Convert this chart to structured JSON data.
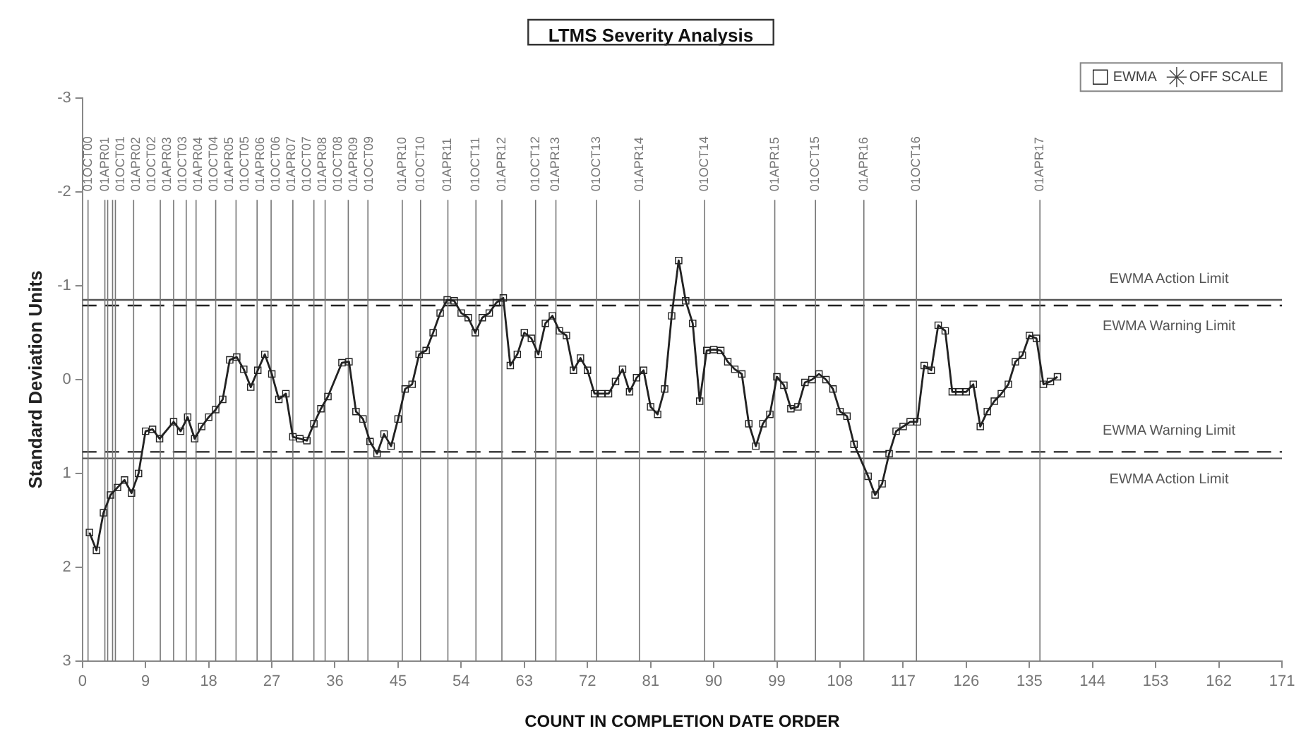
{
  "chart_data": {
    "type": "line",
    "title": "LTMS Severity Analysis",
    "xlabel": "COUNT IN COMPLETION DATE ORDER",
    "ylabel": "Standard Deviation Units",
    "xlim": [
      0,
      171
    ],
    "xticks": [
      0,
      9,
      18,
      27,
      36,
      45,
      54,
      63,
      72,
      81,
      90,
      99,
      108,
      117,
      126,
      135,
      144,
      153,
      162,
      171
    ],
    "ylim": [
      3,
      -3
    ],
    "yticks": [
      -3,
      -2,
      -1,
      0,
      1,
      2,
      3
    ],
    "grid": false,
    "legend": "top right",
    "marker": "square",
    "line_style": "solid",
    "series": [
      {
        "name": "EWMA",
        "color": "#222222",
        "x": [
          1,
          2,
          3,
          4,
          5,
          6,
          7,
          8,
          9,
          10,
          11,
          13,
          14,
          15,
          16,
          17,
          18,
          19,
          20,
          21,
          22,
          23,
          24,
          25,
          26,
          27,
          28,
          29,
          30,
          31,
          32,
          33,
          34,
          35,
          37,
          38,
          39,
          40,
          41,
          42,
          43,
          44,
          45,
          46,
          47,
          48,
          49,
          50,
          51,
          52,
          53,
          54,
          55,
          56,
          57,
          58,
          59,
          60,
          61,
          62,
          63,
          64,
          65,
          66,
          67,
          68,
          69,
          70,
          71,
          72,
          73,
          74,
          75,
          76,
          77,
          78,
          79,
          80,
          81,
          82,
          83,
          84,
          85,
          86,
          87,
          88,
          89,
          90,
          91,
          92,
          93,
          94,
          95,
          96,
          97,
          98,
          99,
          100,
          101,
          102,
          103,
          104,
          105,
          106,
          107,
          108,
          109,
          110,
          112,
          113,
          114,
          115,
          116,
          117,
          118,
          119,
          120,
          121,
          122,
          123,
          124,
          125,
          126,
          127,
          128,
          129,
          130,
          131,
          132,
          133,
          134,
          135,
          136,
          137,
          138,
          139
        ],
        "values": [
          1.63,
          1.82,
          1.42,
          1.23,
          1.15,
          1.07,
          1.21,
          1.0,
          0.55,
          0.53,
          0.63,
          0.45,
          0.55,
          0.4,
          0.63,
          0.5,
          0.4,
          0.32,
          0.21,
          -0.21,
          -0.24,
          -0.11,
          0.08,
          -0.1,
          -0.27,
          -0.06,
          0.21,
          0.15,
          0.61,
          0.63,
          0.65,
          0.47,
          0.31,
          0.18,
          -0.18,
          -0.19,
          0.34,
          0.42,
          0.66,
          0.79,
          0.58,
          0.71,
          0.42,
          0.1,
          0.05,
          -0.27,
          -0.31,
          -0.5,
          -0.71,
          -0.85,
          -0.84,
          -0.71,
          -0.66,
          -0.5,
          -0.66,
          -0.71,
          -0.82,
          -0.87,
          -0.15,
          -0.27,
          -0.5,
          -0.44,
          -0.27,
          -0.6,
          -0.68,
          -0.52,
          -0.47,
          -0.1,
          -0.23,
          -0.1,
          0.15,
          0.15,
          0.15,
          0.02,
          -0.11,
          0.13,
          -0.02,
          -0.1,
          0.29,
          0.37,
          0.1,
          -0.68,
          -1.27,
          -0.84,
          -0.6,
          0.23,
          -0.31,
          -0.32,
          -0.31,
          -0.19,
          -0.11,
          -0.06,
          0.47,
          0.71,
          0.47,
          0.37,
          -0.03,
          0.06,
          0.31,
          0.29,
          0.03,
          0.0,
          -0.06,
          0.0,
          0.1,
          0.34,
          0.39,
          0.69,
          1.03,
          1.23,
          1.11,
          0.79,
          0.55,
          0.5,
          0.45,
          0.45,
          -0.15,
          -0.1,
          -0.58,
          -0.52,
          0.13,
          0.13,
          0.13,
          0.05,
          0.5,
          0.34,
          0.23,
          0.15,
          0.05,
          -0.19,
          -0.26,
          -0.47,
          -0.44,
          0.05,
          0.02,
          -0.03
        ]
      },
      {
        "name": "OFF SCALE",
        "color": "#444444",
        "marker": "star"
      }
    ],
    "ref_lines": [
      {
        "axis": "y",
        "value": -0.85,
        "label": "EWMA Action Limit",
        "line_style": "solid",
        "color": "#555555"
      },
      {
        "axis": "y",
        "value": -0.79,
        "label": "EWMA Warning Limit",
        "line_style": "dashed",
        "color": "#222222"
      },
      {
        "axis": "y",
        "value": 0.77,
        "label": "EWMA Warning Limit",
        "line_style": "dashed",
        "color": "#222222"
      },
      {
        "axis": "y",
        "value": 0.84,
        "label": "EWMA Action Limit",
        "line_style": "solid",
        "color": "#555555"
      },
      {
        "axis": "x",
        "value": 0.8,
        "label": "01OCT00"
      },
      {
        "axis": "x",
        "value": 3.2,
        "label": "01APR01"
      },
      {
        "axis": "x",
        "value": 3.6,
        "label": "01OCT01"
      },
      {
        "axis": "x",
        "value": 4.3,
        "label": "01APR02"
      },
      {
        "axis": "x",
        "value": 4.7,
        "label": "01OCT02"
      },
      {
        "axis": "x",
        "value": 7.3,
        "label": "01APR03"
      },
      {
        "axis": "x",
        "value": 11.1,
        "label": "01OCT03"
      },
      {
        "axis": "x",
        "value": 13.0,
        "label": "01APR04"
      },
      {
        "axis": "x",
        "value": 14.8,
        "label": "01OCT04"
      },
      {
        "axis": "x",
        "value": 16.2,
        "label": "01APR05"
      },
      {
        "axis": "x",
        "value": 19.0,
        "label": "01OCT05"
      },
      {
        "axis": "x",
        "value": 21.9,
        "label": "01APR06"
      },
      {
        "axis": "x",
        "value": 24.9,
        "label": "01OCT06"
      },
      {
        "axis": "x",
        "value": 26.9,
        "label": "01APR07"
      },
      {
        "axis": "x",
        "value": 30.0,
        "label": "01OCT07"
      },
      {
        "axis": "x",
        "value": 33.0,
        "label": "01APR08"
      },
      {
        "axis": "x",
        "value": 34.6,
        "label": "01OCT08"
      },
      {
        "axis": "x",
        "value": 37.9,
        "label": "01APR09"
      },
      {
        "axis": "x",
        "value": 40.7,
        "label": "01OCT09"
      },
      {
        "axis": "x",
        "value": 45.6,
        "label": "01APR10"
      },
      {
        "axis": "x",
        "value": 48.2,
        "label": "01OCT10"
      },
      {
        "axis": "x",
        "value": 52.1,
        "label": "01APR11"
      },
      {
        "axis": "x",
        "value": 56.1,
        "label": "01OCT11"
      },
      {
        "axis": "x",
        "value": 59.8,
        "label": "01APR12"
      },
      {
        "axis": "x",
        "value": 64.6,
        "label": "01OCT12"
      },
      {
        "axis": "x",
        "value": 67.5,
        "label": "01APR13"
      },
      {
        "axis": "x",
        "value": 73.3,
        "label": "01OCT13"
      },
      {
        "axis": "x",
        "value": 79.4,
        "label": "01APR14"
      },
      {
        "axis": "x",
        "value": 88.7,
        "label": "01OCT14"
      },
      {
        "axis": "x",
        "value": 98.7,
        "label": "01APR15"
      },
      {
        "axis": "x",
        "value": 104.5,
        "label": "01OCT15"
      },
      {
        "axis": "x",
        "value": 111.4,
        "label": "01APR16"
      },
      {
        "axis": "x",
        "value": 118.9,
        "label": "01OCT16"
      },
      {
        "axis": "x",
        "value": 136.5,
        "label": "01APR17"
      }
    ]
  }
}
